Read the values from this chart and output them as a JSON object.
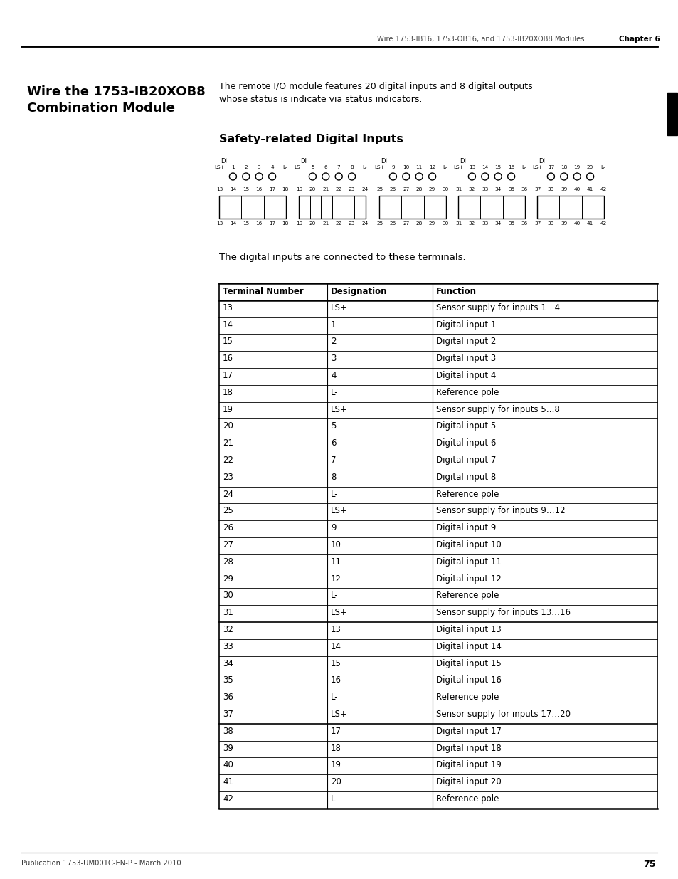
{
  "page_title_header": "Wire 1753-IB16, 1753-OB16, and 1753-IB20XOB8 Modules",
  "chapter": "Chapter 6",
  "section_title_line1": "Wire the 1753-IB20XOB8",
  "section_title_line2": "Combination Module",
  "intro_line1": "The remote I/O module features 20 digital inputs and 8 digital outputs",
  "intro_line2": "whose status is indicate via status indicators.",
  "subsection_title": "Safety-related Digital Inputs",
  "connector_top_labels": [
    [
      "LS+",
      "1",
      "2",
      "3",
      "4",
      "L-"
    ],
    [
      "LS+",
      "5",
      "6",
      "7",
      "8",
      "L-"
    ],
    [
      "LS+",
      "9",
      "10",
      "11",
      "12",
      "L-"
    ],
    [
      "LS+",
      "13",
      "14",
      "15",
      "16",
      "L-"
    ],
    [
      "LS+",
      "17",
      "18",
      "19",
      "20",
      "L-"
    ]
  ],
  "connector_bottom_nums": [
    [
      "13",
      "14",
      "15",
      "16",
      "17",
      "18"
    ],
    [
      "19",
      "20",
      "21",
      "22",
      "23",
      "24"
    ],
    [
      "25",
      "26",
      "27",
      "28",
      "29",
      "30"
    ],
    [
      "31",
      "32",
      "33",
      "34",
      "35",
      "36"
    ],
    [
      "37",
      "38",
      "39",
      "40",
      "41",
      "42"
    ]
  ],
  "paragraph_text": "The digital inputs are connected to these terminals.",
  "table_headers": [
    "Terminal Number",
    "Designation",
    "Function"
  ],
  "table_data": [
    [
      "13",
      "LS+",
      "Sensor supply for inputs 1…4"
    ],
    [
      "14",
      "1",
      "Digital input 1"
    ],
    [
      "15",
      "2",
      "Digital input 2"
    ],
    [
      "16",
      "3",
      "Digital input 3"
    ],
    [
      "17",
      "4",
      "Digital input 4"
    ],
    [
      "18",
      "L-",
      "Reference pole"
    ],
    [
      "19",
      "LS+",
      "Sensor supply for inputs 5…8"
    ],
    [
      "20",
      "5",
      "Digital input 5"
    ],
    [
      "21",
      "6",
      "Digital input 6"
    ],
    [
      "22",
      "7",
      "Digital input 7"
    ],
    [
      "23",
      "8",
      "Digital input 8"
    ],
    [
      "24",
      "L-",
      "Reference pole"
    ],
    [
      "25",
      "LS+",
      "Sensor supply for inputs 9…12"
    ],
    [
      "26",
      "9",
      "Digital input 9"
    ],
    [
      "27",
      "10",
      "Digital input 10"
    ],
    [
      "28",
      "11",
      "Digital input 11"
    ],
    [
      "29",
      "12",
      "Digital input 12"
    ],
    [
      "30",
      "L-",
      "Reference pole"
    ],
    [
      "31",
      "LS+",
      "Sensor supply for inputs 13…16"
    ],
    [
      "32",
      "13",
      "Digital input 13"
    ],
    [
      "33",
      "14",
      "Digital input 14"
    ],
    [
      "34",
      "15",
      "Digital input 15"
    ],
    [
      "35",
      "16",
      "Digital input 16"
    ],
    [
      "36",
      "L-",
      "Reference pole"
    ],
    [
      "37",
      "LS+",
      "Sensor supply for inputs 17…20"
    ],
    [
      "38",
      "17",
      "Digital input 17"
    ],
    [
      "39",
      "18",
      "Digital input 18"
    ],
    [
      "40",
      "19",
      "Digital input 19"
    ],
    [
      "41",
      "20",
      "Digital input 20"
    ],
    [
      "42",
      "L-",
      "Reference pole"
    ]
  ],
  "footer_text": "Publication 1753-UM001C-EN-P - March 2010",
  "footer_page": "75"
}
